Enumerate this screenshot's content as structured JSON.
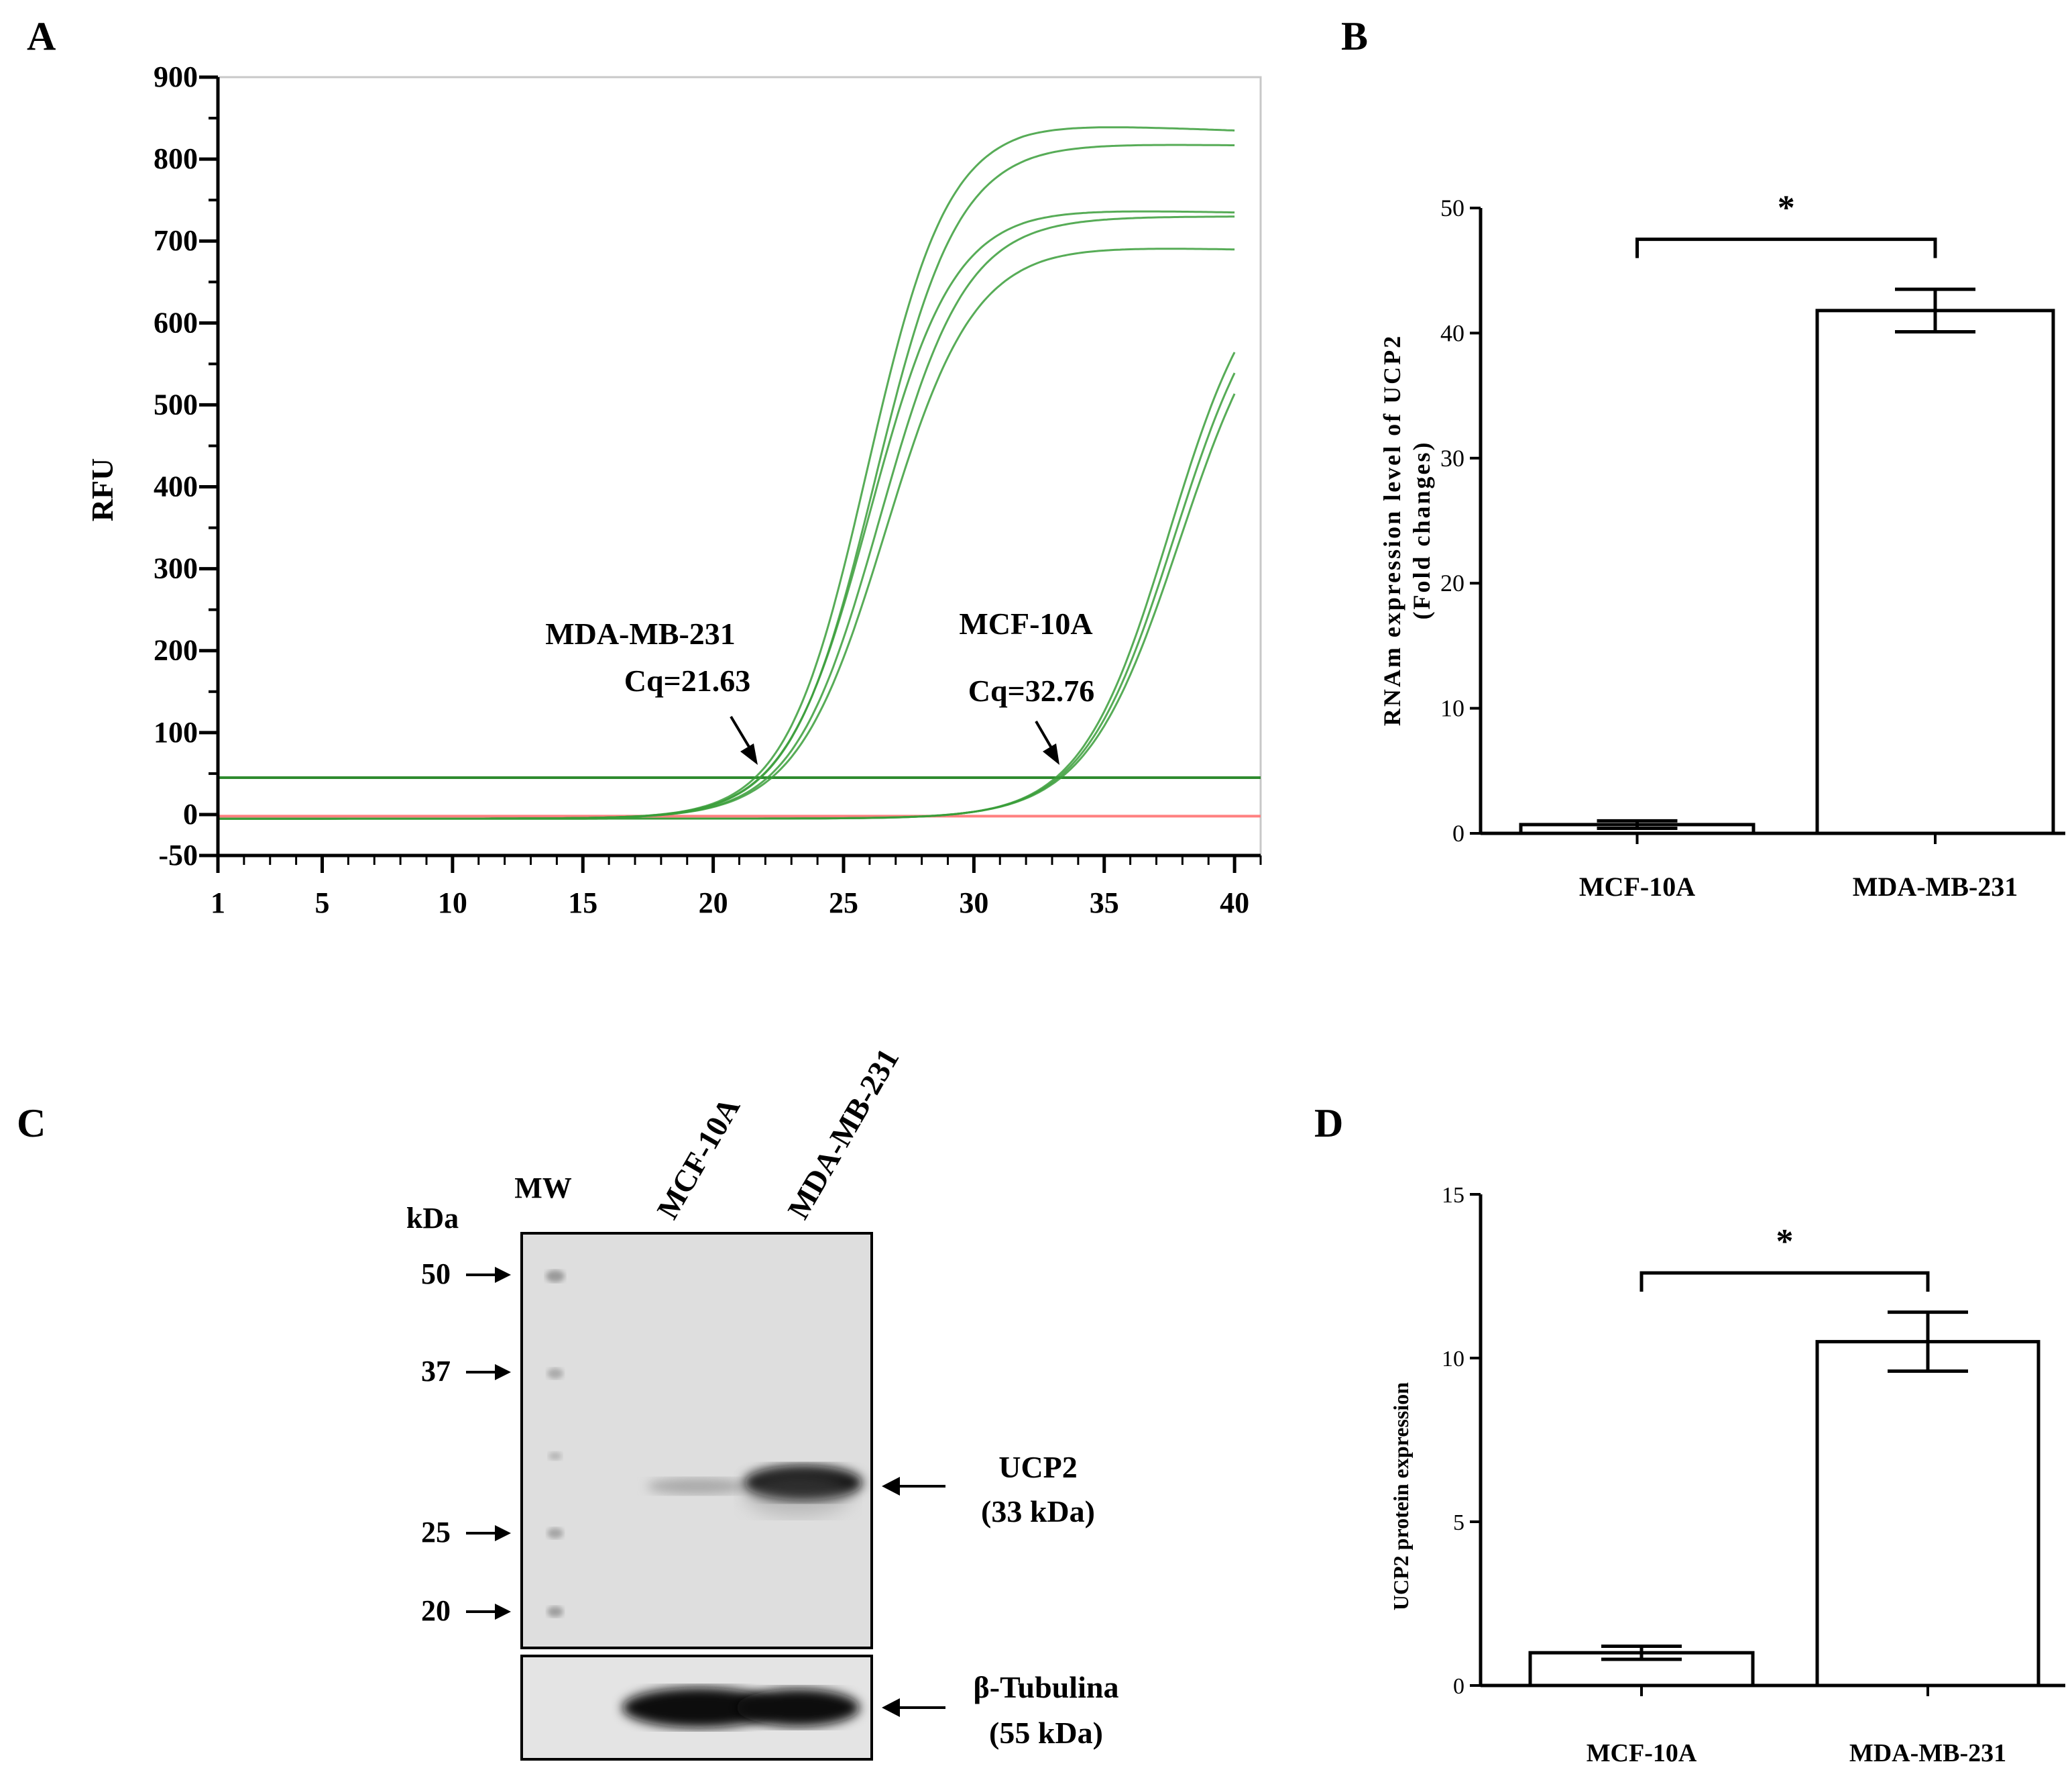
{
  "panels": {
    "a": "A",
    "b": "B",
    "c": "C",
    "d": "D"
  },
  "colors": {
    "curve": "#3a9d3a",
    "threshold": "#2e8b2e",
    "baseline_red": "#ff8080",
    "axis": "#000000",
    "blot_bg": "#dcdcdc"
  },
  "chart_data": [
    {
      "id": "A",
      "type": "line",
      "ylabel": "RFU",
      "xlabel": "",
      "x_ticks": [
        "1",
        "5",
        "10",
        "15",
        "20",
        "25",
        "30",
        "35",
        "40"
      ],
      "x_tick_values": [
        1,
        5,
        10,
        15,
        20,
        25,
        30,
        35,
        40
      ],
      "y_ticks": [
        "900",
        "800",
        "700",
        "600",
        "500",
        "400",
        "300",
        "200",
        "100",
        "0",
        "-50"
      ],
      "y_tick_values": [
        900,
        800,
        700,
        600,
        500,
        400,
        300,
        200,
        100,
        0,
        -50
      ],
      "xlim": [
        1,
        41
      ],
      "ylim": [
        -50,
        900
      ],
      "threshold": 45,
      "series": [
        {
          "name": "MDA-MB-231 replicate 1",
          "plateau": 850,
          "midpoint": 25.9,
          "slope": 1.55,
          "end_value": 840
        },
        {
          "name": "MDA-MB-231 replicate 2",
          "plateau": 825,
          "midpoint": 26.2,
          "slope": 1.6,
          "end_value": 822
        },
        {
          "name": "MDA-MB-231 replicate 3",
          "plateau": 745,
          "midpoint": 26.0,
          "slope": 1.6,
          "end_value": 740
        },
        {
          "name": "MDA-MB-231 replicate 4",
          "plateau": 735,
          "midpoint": 26.4,
          "slope": 1.65,
          "end_value": 735
        },
        {
          "name": "MDA-MB-231 replicate 5",
          "plateau": 700,
          "midpoint": 26.6,
          "slope": 1.7,
          "end_value": 695
        },
        {
          "name": "MCF-10A replicate 1",
          "plateau": 700,
          "midpoint": 37.5,
          "slope": 1.7,
          "end_value": 590
        },
        {
          "name": "MCF-10A replicate 2",
          "plateau": 690,
          "midpoint": 37.7,
          "slope": 1.75,
          "end_value": 575
        },
        {
          "name": "MCF-10A replicate 3",
          "plateau": 680,
          "midpoint": 37.9,
          "slope": 1.8,
          "end_value": 560
        }
      ],
      "annotations": [
        {
          "label": "MDA-MB-231",
          "value_label": "Cq=21.63",
          "x": 21.63
        },
        {
          "label": "MCF-10A",
          "value_label": "Cq=32.76",
          "x": 32.76
        }
      ]
    },
    {
      "id": "B",
      "type": "bar",
      "categories": [
        "MCF-10A",
        "MDA-MB-231"
      ],
      "values": [
        0.7,
        41.8
      ],
      "errors": [
        0.3,
        1.7
      ],
      "ylabel": "RNAm expression level of UCP2 (Fold changes)",
      "ylabel_line1": "RNAm expression level of UCP2",
      "ylabel_line2": "(Fold changes)",
      "y_ticks": [
        "0",
        "10",
        "20",
        "30",
        "40",
        "50"
      ],
      "y_tick_values": [
        0,
        10,
        20,
        30,
        40,
        50
      ],
      "ylim": [
        0,
        50
      ],
      "significance": "*",
      "bracket_y": 47.5
    },
    {
      "id": "D",
      "type": "bar",
      "categories": [
        "MCF-10A",
        "MDA-MB-231"
      ],
      "values": [
        1.0,
        10.5
      ],
      "errors": [
        0.2,
        0.9
      ],
      "ylabel": "UCP2 protein expression",
      "y_ticks": [
        "0",
        "5",
        "10",
        "15"
      ],
      "y_tick_values": [
        0,
        5,
        10,
        15
      ],
      "ylim": [
        0,
        15
      ],
      "significance": "*",
      "bracket_y": 12.6
    }
  ],
  "blot": {
    "lanes": [
      "MW",
      "MCF-10A",
      "MDA-MB-231"
    ],
    "kda_label": "kDa",
    "markers": [
      "50",
      "37",
      "25",
      "20"
    ],
    "ucp2_label": "UCP2",
    "ucp2_kda": "(33 kDa)",
    "tubulin_label": "β-Tubulina",
    "tubulin_kda": "(55 kDa)"
  }
}
